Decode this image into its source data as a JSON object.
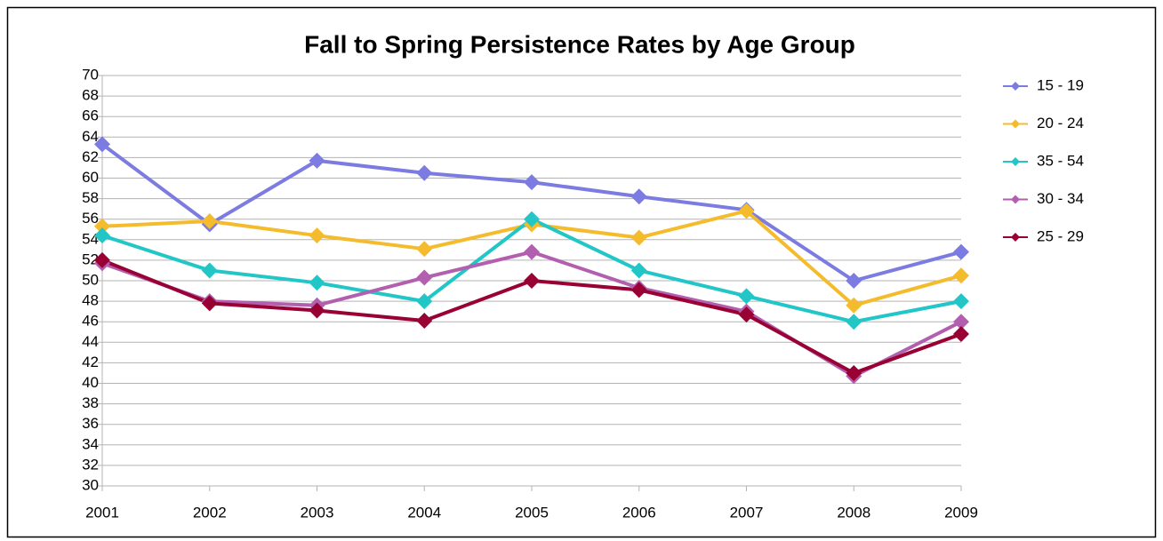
{
  "chart_data": {
    "type": "line",
    "title": "Fall to Spring Persistence Rates by Age Group",
    "categories": [
      "2001",
      "2002",
      "2003",
      "2004",
      "2005",
      "2006",
      "2007",
      "2008",
      "2009"
    ],
    "series": [
      {
        "name": "15 - 19",
        "color": "#7b7be2",
        "values": [
          63.3,
          55.5,
          61.7,
          60.5,
          59.6,
          58.2,
          56.9,
          50.0,
          52.8
        ]
      },
      {
        "name": "20 - 24",
        "color": "#f4bc2c",
        "values": [
          55.3,
          55.8,
          54.4,
          53.1,
          55.5,
          54.2,
          56.8,
          47.6,
          50.5
        ]
      },
      {
        "name": "35 - 54",
        "color": "#22c6c6",
        "values": [
          54.4,
          51.0,
          49.8,
          48.0,
          56.0,
          51.0,
          48.5,
          46.0,
          48.0
        ]
      },
      {
        "name": "30 - 34",
        "color": "#b35faf",
        "values": [
          51.7,
          48.0,
          47.6,
          50.3,
          52.8,
          49.3,
          47.0,
          40.7,
          46.0
        ]
      },
      {
        "name": "25 - 29",
        "color": "#990033",
        "values": [
          52.0,
          47.8,
          47.1,
          46.1,
          50.0,
          49.1,
          46.7,
          41.0,
          44.8
        ]
      }
    ],
    "ylim": [
      30,
      70
    ],
    "yticks": [
      30,
      32,
      34,
      36,
      38,
      40,
      42,
      44,
      46,
      48,
      50,
      52,
      54,
      56,
      58,
      60,
      62,
      64,
      66,
      68,
      70
    ],
    "grid": true,
    "legend": "right"
  }
}
